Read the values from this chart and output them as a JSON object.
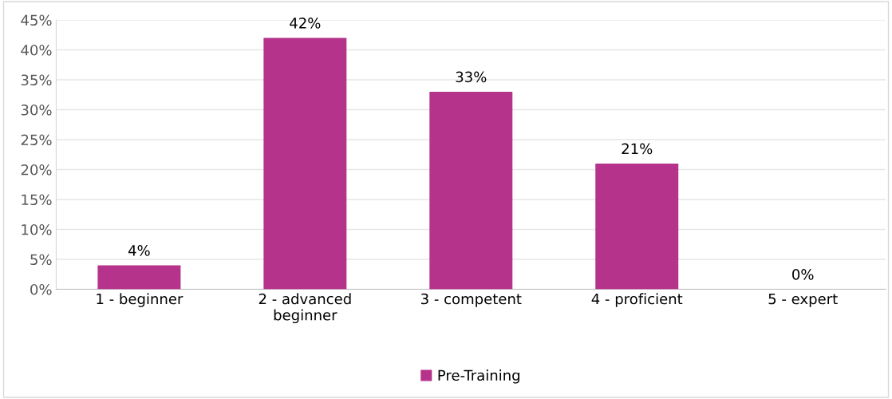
{
  "chart_data": {
    "type": "bar",
    "categories": [
      "1 - beginner",
      "2 - advanced beginner",
      "3 - competent",
      "4 - proficient",
      "5 - expert"
    ],
    "series": [
      {
        "name": "Pre-Training",
        "color": "#b5338a",
        "values": [
          4,
          42,
          33,
          21,
          0
        ],
        "value_labels": [
          "4%",
          "42%",
          "33%",
          "21%",
          "0%"
        ]
      }
    ],
    "ylim": [
      0,
      45
    ],
    "yticks": [
      {
        "value": 0,
        "label": "0%"
      },
      {
        "value": 5,
        "label": "5%"
      },
      {
        "value": 10,
        "label": "10%"
      },
      {
        "value": 15,
        "label": "15%"
      },
      {
        "value": 20,
        "label": "20%"
      },
      {
        "value": 25,
        "label": "25%"
      },
      {
        "value": 30,
        "label": "30%"
      },
      {
        "value": 35,
        "label": "35%"
      },
      {
        "value": 40,
        "label": "40%"
      },
      {
        "value": 45,
        "label": "45%"
      }
    ],
    "grid": "y",
    "legend": "bottom"
  }
}
